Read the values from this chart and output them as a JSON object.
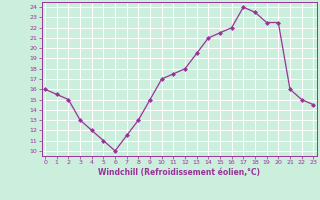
{
  "x": [
    0,
    1,
    2,
    3,
    4,
    5,
    6,
    7,
    8,
    9,
    10,
    11,
    12,
    13,
    14,
    15,
    16,
    17,
    18,
    19,
    20,
    21,
    22,
    23
  ],
  "y": [
    16,
    15.5,
    15,
    13,
    12,
    11,
    10,
    11.5,
    13,
    15,
    17,
    17.5,
    18,
    19.5,
    21,
    21.5,
    22,
    24,
    23.5,
    22.5,
    22.5,
    16,
    15,
    14.5
  ],
  "xlabel": "Windchill (Refroidissement éolien,°C)",
  "ylim": [
    9.5,
    24.5
  ],
  "xlim": [
    -0.3,
    23.3
  ],
  "yticks": [
    10,
    11,
    12,
    13,
    14,
    15,
    16,
    17,
    18,
    19,
    20,
    21,
    22,
    23,
    24
  ],
  "xticks": [
    0,
    1,
    2,
    3,
    4,
    5,
    6,
    7,
    8,
    9,
    10,
    11,
    12,
    13,
    14,
    15,
    16,
    17,
    18,
    19,
    20,
    21,
    22,
    23
  ],
  "line_color": "#993399",
  "marker": "D",
  "marker_size": 2.0,
  "bg_color": "#cceedd",
  "grid_color": "#ffffff",
  "axis_label_color": "#993399",
  "tick_label_color": "#993399"
}
